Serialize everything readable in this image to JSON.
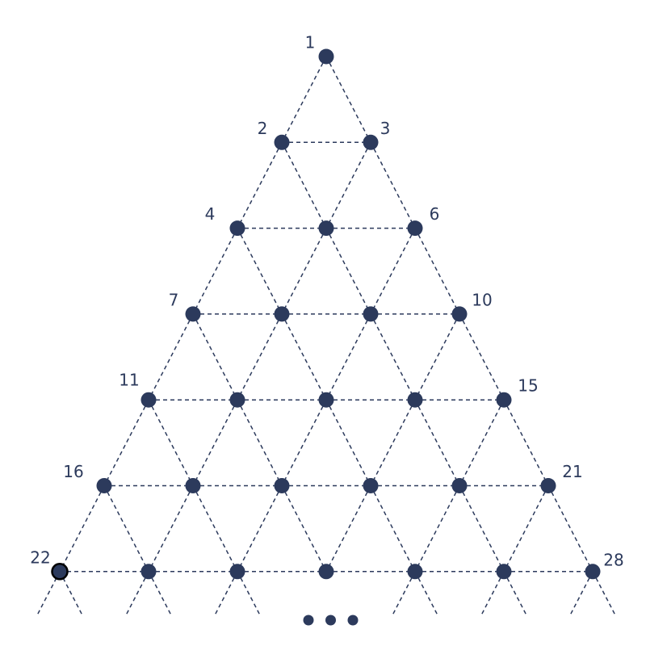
{
  "diagram": {
    "description_type": "triangular-number-lattice",
    "rows": 7,
    "labels": {
      "1": "1",
      "2": "2",
      "3": "3",
      "4": "4",
      "6": "6",
      "7": "7",
      "10": "10",
      "11": "11",
      "15": "15",
      "16": "16",
      "21": "21",
      "22": "22",
      "28": "28"
    },
    "colors": {
      "node": "#2c3a5c",
      "edge": "#2c3a5c",
      "label": "#2c3a5c",
      "special_node_outline": "#000000"
    },
    "special_node": 22,
    "continuation_dots": 3
  }
}
